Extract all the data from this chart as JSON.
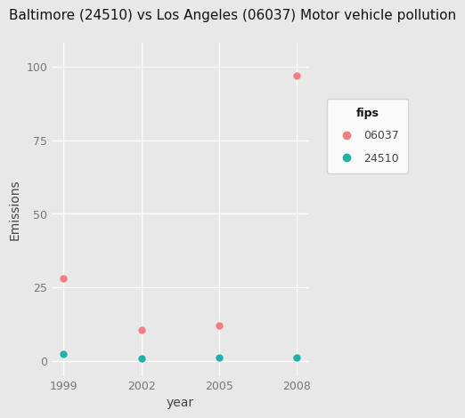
{
  "title": "Baltimore (24510) vs Los Angeles (06037) Motor vehicle pollution",
  "xlabel": "year",
  "ylabel": "Emissions",
  "background_color": "#e8e8e8",
  "plot_bg_color": "#e8e8e8",
  "legend_bg_color": "#ffffff",
  "grid_color": "#ffffff",
  "series": {
    "06037": {
      "years": [
        1999,
        2002,
        2005,
        2008
      ],
      "emissions": [
        28.0,
        10.5,
        12.0,
        97.0
      ],
      "color": "#f08080",
      "marker": "o",
      "label": "06037"
    },
    "24510": {
      "years": [
        1999,
        2002,
        2005,
        2008
      ],
      "emissions": [
        2.5,
        0.8,
        1.2,
        1.2
      ],
      "color": "#20b2aa",
      "marker": "o",
      "label": "24510"
    }
  },
  "ylim": [
    -5,
    108
  ],
  "yticks": [
    0,
    25,
    50,
    75,
    100
  ],
  "xticks": [
    1999,
    2002,
    2005,
    2008
  ],
  "legend_title": "fips",
  "title_fontsize": 11,
  "axis_label_fontsize": 10,
  "tick_fontsize": 9,
  "legend_fontsize": 9,
  "fig_bg_color": "#e8e8e8"
}
